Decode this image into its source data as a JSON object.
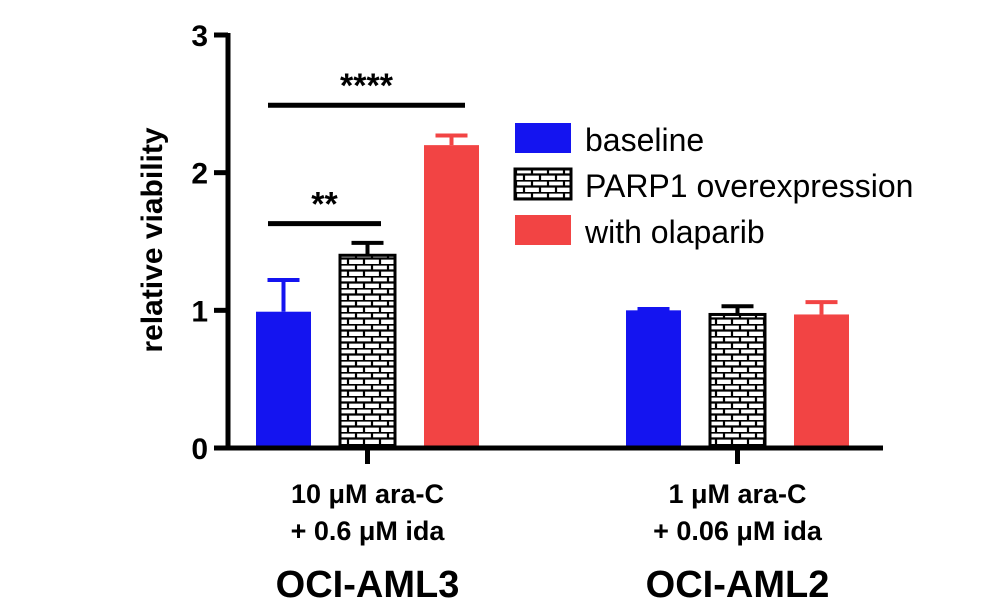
{
  "chart_data": {
    "type": "bar",
    "ylabel": "relative viability",
    "ylim": [
      0,
      3
    ],
    "yticks": [
      0,
      1,
      2,
      3
    ],
    "grid": false,
    "legend_position": "right",
    "series": [
      {
        "name": "baseline",
        "color": "#1414f0",
        "pattern": "solid",
        "values": [
          0.99,
          1.0
        ],
        "errors": [
          0.23,
          0.01
        ]
      },
      {
        "name": "PARP1 overexpression",
        "color": "#000000",
        "pattern": "brick",
        "values": [
          1.4,
          0.97
        ],
        "errors": [
          0.09,
          0.06
        ]
      },
      {
        "name": "with olaparib",
        "color": "#f24444",
        "pattern": "solid",
        "values": [
          2.2,
          0.97
        ],
        "errors": [
          0.07,
          0.09
        ]
      }
    ],
    "groups": [
      {
        "line1": "10 μM ara-C",
        "line2": "+ 0.6 μM ida",
        "cell_line": "OCI-AML3"
      },
      {
        "line1": "1 μM ara-C",
        "line2": "+ 0.06 μM ida",
        "cell_line": "OCI-AML2"
      }
    ],
    "significance": [
      {
        "label": "**",
        "group": 0,
        "from_series": 0,
        "to_series": 1,
        "y": 1.63
      },
      {
        "label": "****",
        "group": 0,
        "from_series": 0,
        "to_series": 2,
        "y": 2.49
      }
    ]
  }
}
